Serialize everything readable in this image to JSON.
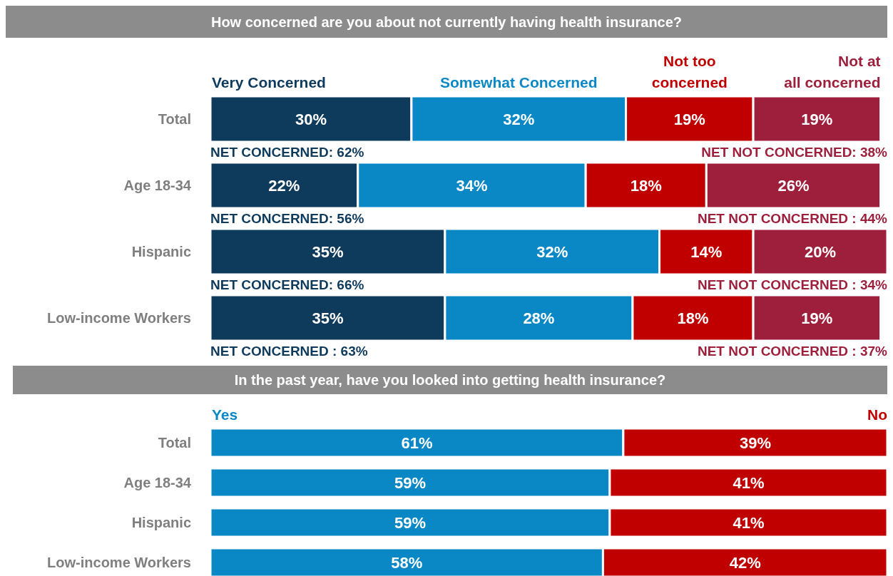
{
  "chart_data": [
    {
      "type": "bar",
      "orientation": "horizontal",
      "stacked": true,
      "legend": "top",
      "title": "How concerned are you about not currently having health insurance?",
      "categories": [
        "Total",
        "Age 18-34",
        "Hispanic",
        "Low-income Workers"
      ],
      "series": [
        {
          "name": "Very Concerned",
          "color": "#0e3a5c",
          "values": [
            30,
            22,
            35,
            35
          ],
          "value_labels": [
            "30%",
            "22%",
            "35%",
            "35%"
          ]
        },
        {
          "name": "Somewhat Concerned",
          "color": "#0a88c6",
          "values": [
            32,
            34,
            32,
            28
          ],
          "value_labels": [
            "32%",
            "34%",
            "32%",
            "28%"
          ]
        },
        {
          "name": "Not too concerned",
          "color": "#c00000",
          "values": [
            19,
            18,
            14,
            18
          ],
          "value_labels": [
            "19%",
            "18%",
            "14%",
            "18%"
          ]
        },
        {
          "name": "Not at all concerned",
          "color": "#9e1f3c",
          "values": [
            19,
            26,
            20,
            19
          ],
          "value_labels": [
            "19%",
            "26%",
            "20%",
            "19%"
          ]
        }
      ],
      "annotations": [
        "NET CONCERNED: 62%",
        "NET NOT CONCERNED: 38%",
        "NET CONCERNED: 56%",
        "NET NOT CONCERNED : 44%",
        "NET CONCERNED: 66%",
        "NET NOT CONCERNED : 34%",
        "NET CONCERNED : 63%",
        "NET NOT CONCERNED : 37%"
      ]
    },
    {
      "type": "bar",
      "orientation": "horizontal",
      "stacked": true,
      "legend": "top",
      "title": "In the past year, have you looked into getting health insurance?",
      "categories": [
        "Total",
        "Age 18-34",
        "Hispanic",
        "Low-income Workers"
      ],
      "series": [
        {
          "name": "Yes",
          "color": "#0a88c6",
          "values": [
            61,
            59,
            59,
            58
          ],
          "value_labels": [
            "61%",
            "59%",
            "59%",
            "58%"
          ]
        },
        {
          "name": "No",
          "color": "#c00000",
          "values": [
            39,
            41,
            41,
            42
          ],
          "value_labels": [
            "39%",
            "41%",
            "41%",
            "42%"
          ]
        }
      ]
    }
  ]
}
